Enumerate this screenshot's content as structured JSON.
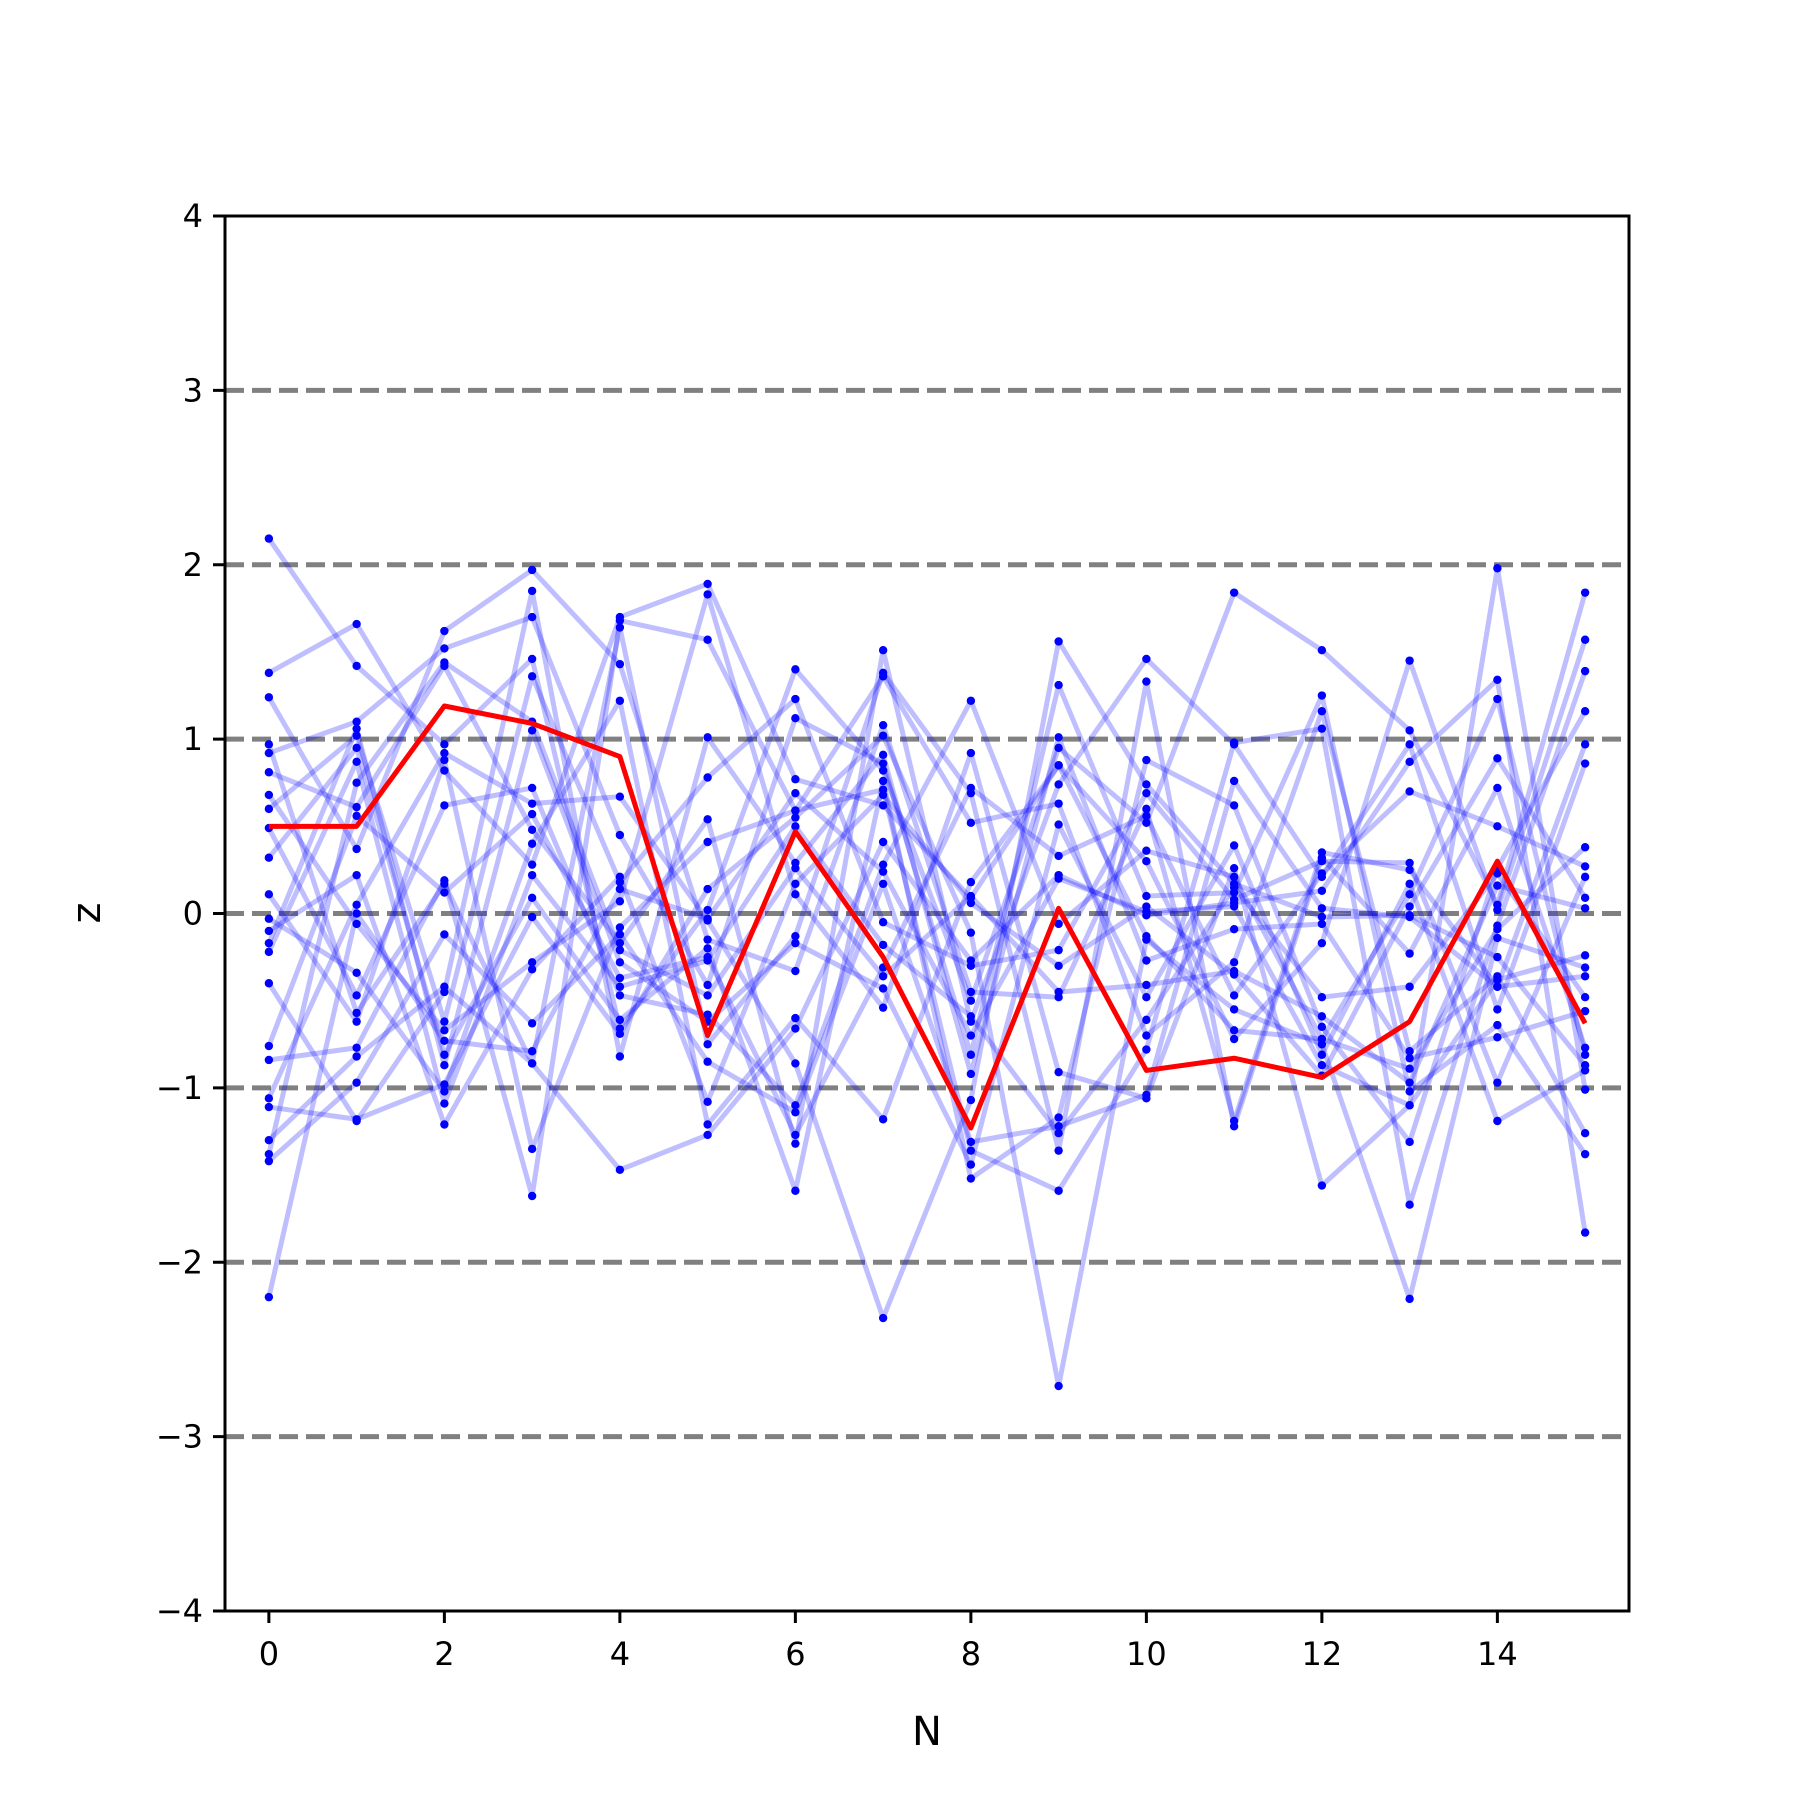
{
  "chart_data": {
    "type": "line",
    "title": "",
    "xlabel": "N",
    "ylabel": "z",
    "xlim": [
      -0.5,
      15.5
    ],
    "ylim": [
      -4,
      4
    ],
    "xticks": [
      0,
      2,
      4,
      6,
      8,
      10,
      12,
      14
    ],
    "xtick_labels": [
      "0",
      "2",
      "4",
      "6",
      "8",
      "10",
      "12",
      "14"
    ],
    "yticks": [
      -4,
      -3,
      -2,
      -1,
      0,
      1,
      2,
      3,
      4
    ],
    "ytick_labels": [
      "−4",
      "−3",
      "−2",
      "−1",
      "0",
      "1",
      "2",
      "3",
      "4"
    ],
    "reference_lines": [
      -3,
      -2,
      -1,
      0,
      1,
      2,
      3
    ],
    "grid": false,
    "colors": {
      "samples": "#0000ff",
      "highlight": "#ff0000",
      "reference": "#808080",
      "axes": "#000000"
    },
    "x": [
      0,
      1,
      2,
      3,
      4,
      5,
      6,
      7,
      8,
      9,
      10,
      11,
      12,
      13,
      14,
      15
    ],
    "highlight_values": [
      0.5,
      0.5,
      1.19,
      1.09,
      0.9,
      -0.7,
      0.47,
      -0.25,
      -1.23,
      0.03,
      -0.9,
      -0.83,
      -0.94,
      -0.62,
      0.3,
      -0.63
    ],
    "sample_series": [
      [
        2.15,
        1.42,
        0.97,
        1.46,
        -0.66,
        0.02,
        1.4,
        0.82,
        -0.5,
        0.95,
        0.52,
        1.84,
        1.51,
        1.05,
        0.05,
        1.84
      ],
      [
        1.38,
        1.66,
        0.82,
        0.28,
        1.7,
        1.89,
        0.77,
        0.62,
        0.09,
        0.85,
        0.3,
        -0.72,
        -0.17,
        1.45,
        0.02,
        1.57
      ],
      [
        1.24,
        0.37,
        1.62,
        1.97,
        1.43,
        -0.15,
        -0.33,
        1.08,
        -0.45,
        -0.48,
        0.6,
        -1.19,
        0.35,
        0.25,
        -0.42,
        -0.36
      ],
      [
        0.97,
        -0.57,
        0.17,
        -0.86,
        1.64,
        -0.75,
        -0.13,
        1.38,
        0.69,
        -1.36,
        1.33,
        -1.22,
        0.32,
        -0.23,
        0.72,
        -0.77
      ],
      [
        0.92,
        1.1,
        1.52,
        1.7,
        0.45,
        -0.41,
        1.12,
        0.86,
        -0.81,
        1.31,
        0.1,
        0.12,
        1.25,
        -1.02,
        -0.64,
        -1.38
      ],
      [
        0.81,
        0.61,
        1.42,
        0.48,
        -0.17,
        0.54,
        -1.32,
        1.51,
        -0.62,
        0.74,
        1.46,
        0.97,
        0.21,
        0.97,
        -0.55,
        0.86
      ],
      [
        0.68,
        -0.06,
        -0.67,
        -0.28,
        0.07,
        1.83,
        0.11,
        -0.54,
        0.92,
        -0.91,
        -1.06,
        0.26,
        -1.56,
        -1.1,
        1.98,
        -1.01
      ],
      [
        0.6,
        1.02,
        -0.62,
        1.36,
        0.18,
        0.78,
        1.23,
        -0.05,
        -0.3,
        -0.21,
        0.69,
        0.08,
        0.3,
        0.29,
        -0.97,
        0.21
      ],
      [
        0.49,
        -0.47,
        0.62,
        0.72,
        -0.47,
        -0.58,
        -1.1,
        0.28,
        1.22,
        -0.06,
        0.36,
        0.21,
        -0.72,
        0.11,
        1.23,
        -0.81
      ],
      [
        0.32,
        0.95,
        -0.81,
        0.09,
        -0.61,
        -0.2,
        -1.59,
        0.76,
        -1.52,
        -1.17,
        0.88,
        0.62,
        -0.65,
        -1.31,
        0.26,
        1.16
      ],
      [
        0.11,
        -0.62,
        0.88,
        -1.35,
        -0.08,
        0.41,
        0.59,
        1.36,
        0.52,
        0.63,
        -0.7,
        -0.28,
        1.16,
        -0.79,
        -0.36,
        -1.26
      ],
      [
        -0.03,
        -0.34,
        -1.02,
        0.4,
        1.22,
        -1.21,
        -0.6,
        -1.18,
        0.18,
        0.85,
        -0.13,
        -0.67,
        -0.72,
        -0.89,
        -0.09,
        0.38
      ],
      [
        -0.1,
        0.22,
        -1.21,
        -0.32,
        0.21,
        -1.08,
        0.17,
        0.68,
        0.06,
        -0.3,
        0.04,
        -0.35,
        -0.93,
        0.04,
        0.89,
        0.09
      ],
      [
        -0.17,
        1.06,
        -0.87,
        1.05,
        -0.28,
        -0.62,
        -0.17,
        -0.43,
        -1.44,
        0.51,
        -0.48,
        0.39,
        -0.81,
        0.17,
        -1.19,
        -0.9
      ],
      [
        -0.4,
        -1.19,
        -0.45,
        1.85,
        -0.82,
        1.01,
        0.29,
        0.91,
        -0.92,
        1.01,
        -0.27,
        -0.09,
        -0.06,
        -0.83,
        -0.71,
        -0.56
      ],
      [
        -0.76,
        0.56,
        0.12,
        0.57,
        -0.37,
        -0.25,
        -1.27,
        -0.31,
        0.72,
        0.33,
        0.56,
        -0.47,
        0.23,
        0.7,
        0.5,
        0.27
      ],
      [
        -0.84,
        -0.77,
        0.19,
        -1.62,
        1.68,
        1.57,
        0.59,
        0.71,
        -1.36,
        -1.59,
        -0.78,
        0.98,
        1.06,
        -1.67,
        -0.07,
        1.39
      ],
      [
        -1.06,
        0.05,
        0.92,
        0.63,
        0.67,
        -0.04,
        -0.86,
        -2.32,
        -1.07,
        1.56,
        0.74,
        0.17,
        -0.02,
        -0.01,
        -0.25,
        -0.87
      ],
      [
        -1.11,
        -1.18,
        -0.98,
        -0.02,
        -0.69,
        0.14,
        0.55,
        1.02,
        -0.11,
        -2.71,
        -0.15,
        -0.55,
        -0.75,
        -2.21,
        -0.14,
        -0.31
      ],
      [
        -1.3,
        -0.82,
        -0.42,
        -0.86,
        -1.47,
        -1.27,
        -0.66,
        0.41,
        -0.27,
        0.22,
        -0.01,
        0.06,
        0.13,
        0.87,
        1.34,
        -1.83
      ],
      [
        -1.38,
        0.75,
        1.44,
        1.1,
        -0.21,
        -0.47,
        0.26,
        -0.36,
        0.1,
        -0.45,
        -0.41,
        -0.33,
        -0.59,
        -0.97,
        0.16,
        0.03
      ],
      [
        -1.42,
        -0.97,
        -0.12,
        -0.63,
        -0.12,
        -0.85,
        -1.14,
        0.17,
        -1.31,
        -1.22,
        -1.04,
        0.76,
        0.03,
        -0.02,
        -0.42,
        0.97
      ],
      [
        -2.2,
        0.0,
        -0.73,
        -0.79,
        0.14,
        -0.03,
        0.69,
        0.24,
        -0.7,
        0.2,
        0.01,
        0.04,
        -0.87,
        -1.1,
        -0.38,
        -0.24
      ],
      [
        -0.22,
        0.87,
        -1.09,
        0.22,
        -0.42,
        -0.27,
        0.5,
        -0.18,
        -0.59,
        -1.26,
        -0.61,
        0.15,
        -0.48,
        -0.42,
        0.23,
        -0.48
      ]
    ]
  }
}
